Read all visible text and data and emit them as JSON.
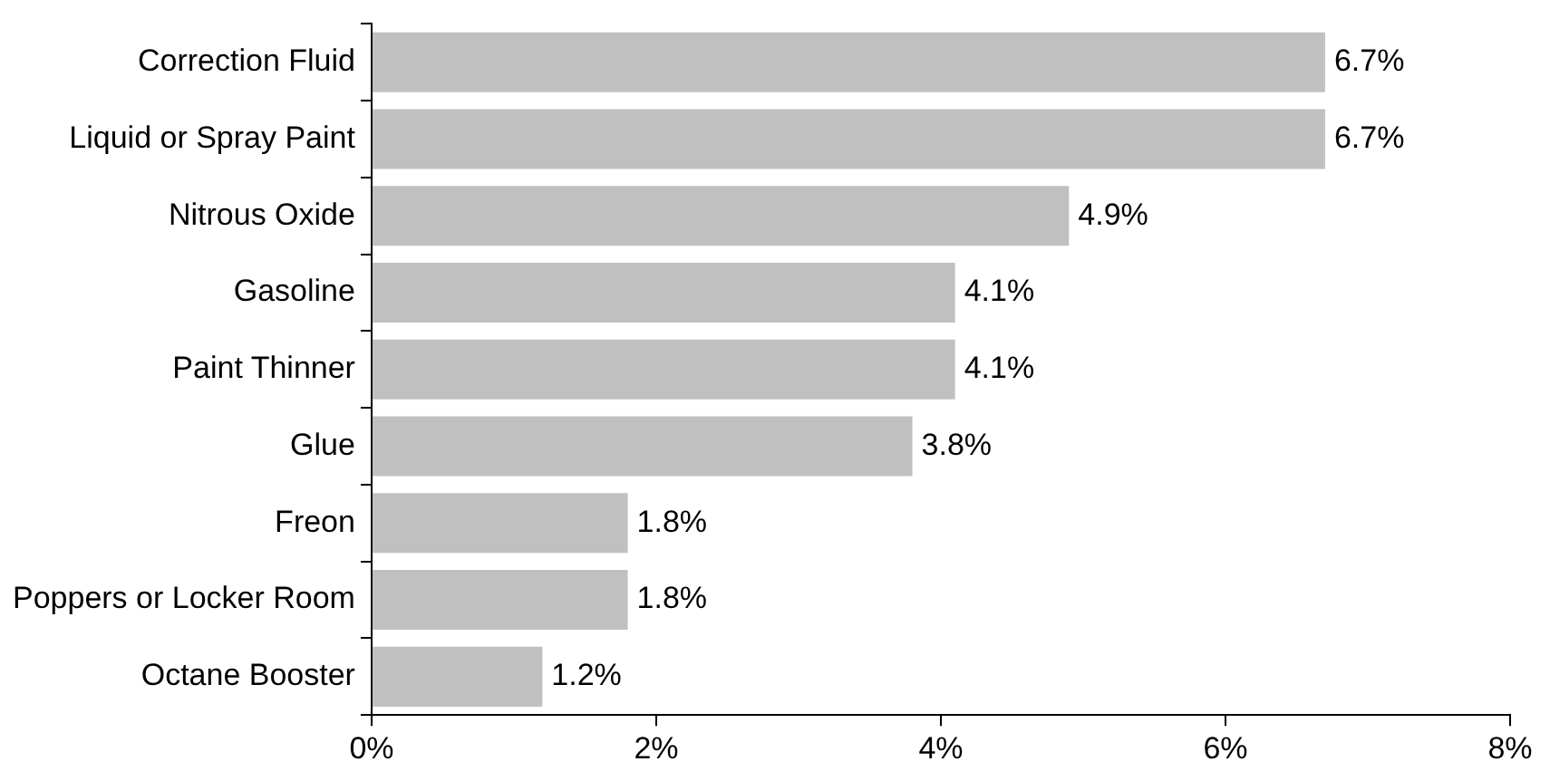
{
  "chart_data": {
    "type": "bar",
    "orientation": "horizontal",
    "categories": [
      "Correction Fluid",
      "Liquid or Spray Paint",
      "Nitrous Oxide",
      "Gasoline",
      "Paint Thinner",
      "Glue",
      "Freon",
      "Poppers or Locker Room",
      "Octane Booster"
    ],
    "values": [
      6.7,
      6.7,
      4.9,
      4.1,
      4.1,
      3.8,
      1.8,
      1.8,
      1.2
    ],
    "value_labels": [
      "6.7%",
      "6.7%",
      "4.9%",
      "4.1%",
      "4.1%",
      "3.8%",
      "1.8%",
      "1.8%",
      "1.2%"
    ],
    "color": "#c0c0c0",
    "xlim": [
      0,
      8
    ],
    "xticks": [
      {
        "value": 0,
        "label": "0%"
      },
      {
        "value": 2,
        "label": "2%"
      },
      {
        "value": 4,
        "label": "4%"
      },
      {
        "value": 6,
        "label": "6%"
      },
      {
        "value": 8,
        "label": "8%"
      }
    ],
    "grid": false,
    "legend": false
  }
}
